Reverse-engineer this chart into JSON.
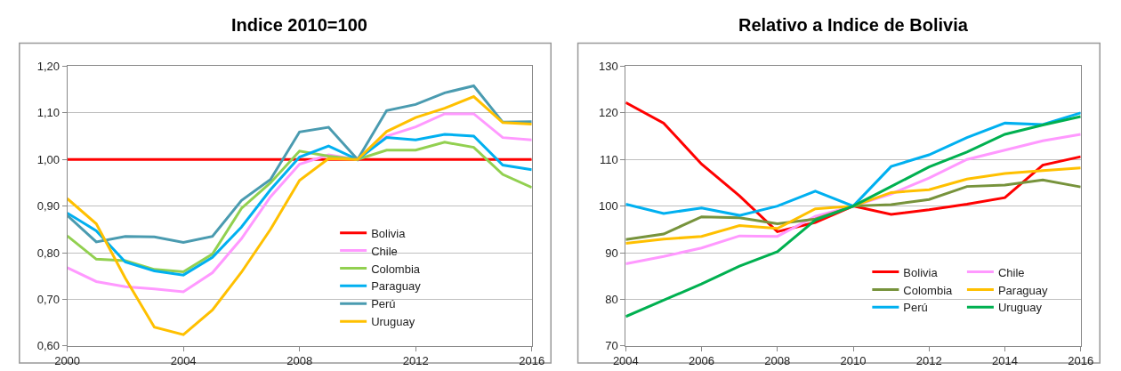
{
  "chart_data": [
    {
      "type": "line",
      "title": "Indice 2010=100",
      "x": [
        2000,
        2001,
        2002,
        2003,
        2004,
        2005,
        2006,
        2007,
        2008,
        2009,
        2010,
        2011,
        2012,
        2013,
        2014,
        2015,
        2016
      ],
      "series": [
        {
          "name": "Bolivia",
          "color": "#ff0000",
          "values": [
            1,
            1,
            1,
            1,
            1,
            1,
            1,
            1,
            1,
            1,
            1,
            1,
            1,
            1,
            1,
            1,
            1
          ]
        },
        {
          "name": "Chile",
          "color": "#ff99ff",
          "values": [
            0.768,
            0.738,
            0.727,
            0.722,
            0.716,
            0.757,
            0.83,
            0.92,
            0.99,
            1.01,
            1.0,
            1.05,
            1.07,
            1.098,
            1.098,
            1.047,
            1.042
          ]
        },
        {
          "name": "Colombia",
          "color": "#92d050",
          "values": [
            0.836,
            0.786,
            0.783,
            0.764,
            0.759,
            0.797,
            0.895,
            0.95,
            1.018,
            1.007,
            1.0,
            1.02,
            1.02,
            1.037,
            1.026,
            0.968,
            0.94
          ]
        },
        {
          "name": "Paraguay",
          "color": "#00b0f0",
          "values": [
            0.885,
            0.847,
            0.78,
            0.761,
            0.752,
            0.79,
            0.855,
            0.935,
            1.005,
            1.029,
            1.0,
            1.047,
            1.042,
            1.054,
            1.05,
            0.988,
            0.978
          ]
        },
        {
          "name": "Perú",
          "color": "#4a9bb0",
          "values": [
            0.88,
            0.823,
            0.835,
            0.834,
            0.822,
            0.835,
            0.912,
            0.957,
            1.059,
            1.069,
            1.0,
            1.105,
            1.118,
            1.143,
            1.158,
            1.08,
            1.081
          ]
        },
        {
          "name": "Uruguay",
          "color": "#ffc000",
          "values": [
            0.916,
            0.862,
            0.745,
            0.64,
            0.624,
            0.677,
            0.758,
            0.85,
            0.955,
            1.002,
            1.0,
            1.06,
            1.09,
            1.11,
            1.135,
            1.079,
            1.076
          ]
        }
      ],
      "xlim": [
        2000,
        2016
      ],
      "xticks": [
        2000,
        2004,
        2008,
        2012,
        2016
      ],
      "ylim": [
        0.6,
        1.2
      ],
      "yticks": [
        {
          "value": 0.6,
          "label": "0,60"
        },
        {
          "value": 0.7,
          "label": "0,70"
        },
        {
          "value": 0.8,
          "label": "0,80"
        },
        {
          "value": 0.9,
          "label": "0,90"
        },
        {
          "value": 1.0,
          "label": "1,00"
        },
        {
          "value": 1.1,
          "label": "1,10"
        },
        {
          "value": 1.2,
          "label": "1,20"
        }
      ],
      "grid": "y",
      "legend": "bottom right",
      "marker": "none",
      "line_style": "solid"
    },
    {
      "type": "line",
      "title": "Relativo a Indice de Bolivia",
      "x": [
        2004,
        2005,
        2006,
        2007,
        2008,
        2009,
        2010,
        2011,
        2012,
        2013,
        2014,
        2015,
        2016
      ],
      "series": [
        {
          "name": "Bolivia",
          "color": "#ff0000",
          "values": [
            122.2,
            117.8,
            109,
            102.2,
            94.5,
            96.5,
            100,
            98.2,
            99.2,
            100.4,
            101.8,
            108.8,
            110.6
          ]
        },
        {
          "name": "Chile",
          "color": "#ff99ff",
          "values": [
            87.6,
            89.2,
            91,
            93.6,
            93.5,
            97.8,
            100,
            102.6,
            106,
            110,
            112,
            114,
            115.4
          ]
        },
        {
          "name": "Colombia",
          "color": "#77933c",
          "values": [
            92.8,
            94,
            97.7,
            97.5,
            96.2,
            97.2,
            100,
            100.3,
            101.4,
            104.2,
            104.5,
            105.6,
            104.1
          ]
        },
        {
          "name": "Paraguay",
          "color": "#ffc000",
          "values": [
            92,
            92.9,
            93.5,
            95.8,
            95.2,
            99.4,
            100,
            102.9,
            103.5,
            105.8,
            107,
            107.6,
            108.2
          ]
        },
        {
          "name": "Perú",
          "color": "#00b0f0",
          "values": [
            100.4,
            98.4,
            99.6,
            98,
            100,
            103.2,
            100,
            108.5,
            111,
            114.7,
            117.8,
            117.5,
            120
          ]
        },
        {
          "name": "Uruguay",
          "color": "#00b050",
          "values": [
            76.3,
            79.8,
            83.3,
            87.1,
            90.2,
            97,
            100,
            104.2,
            108.4,
            111.6,
            115.4,
            117.4,
            119.2
          ]
        }
      ],
      "xlim": [
        2004,
        2016
      ],
      "xticks": [
        2004,
        2006,
        2008,
        2010,
        2012,
        2014,
        2016
      ],
      "ylim": [
        70,
        130
      ],
      "yticks": [
        70,
        80,
        90,
        100,
        110,
        120,
        130
      ],
      "grid": "y",
      "legend": "bottom right",
      "marker": "none",
      "line_style": "solid"
    }
  ]
}
